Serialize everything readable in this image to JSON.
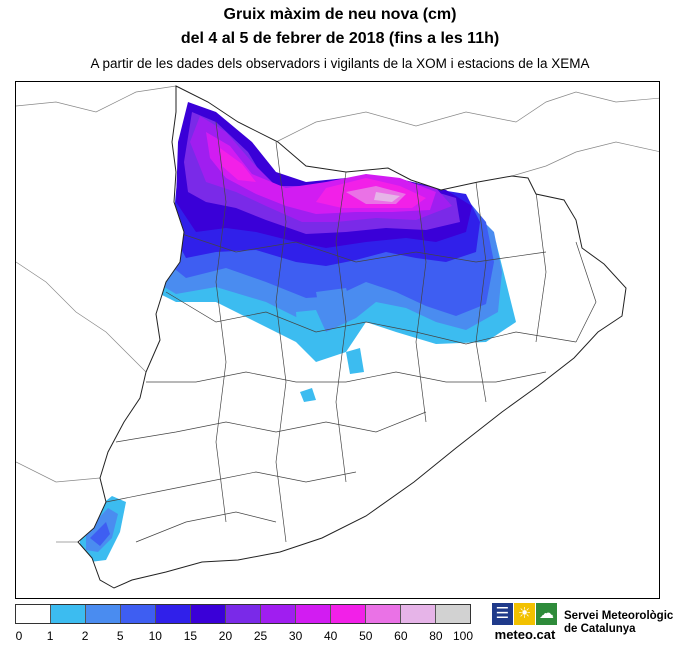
{
  "title_line1": "Gruix màxim de neu nova (cm)",
  "title_line2": "del 4 al 5 de febrer de 2018 (fins a les 11h)",
  "subtitle": "A partir de les dades dels observadors i vigilants de la XOM i estacions de la XEMA",
  "legend": {
    "colors": [
      "#ffffff",
      "#3cbcf0",
      "#4a8cf0",
      "#3e5ef2",
      "#3020ea",
      "#3a00d8",
      "#7a2ae8",
      "#a01ef0",
      "#d21cf2",
      "#f220e8",
      "#ea72e6",
      "#e6b4e8",
      "#d2d2d2"
    ],
    "labels": [
      "0",
      "1",
      "2",
      "5",
      "10",
      "15",
      "20",
      "25",
      "30",
      "40",
      "50",
      "60",
      "80",
      "100"
    ]
  },
  "logo": {
    "text": "meteo.cat",
    "icons": [
      "menu-lines-icon",
      "sun-icon",
      "cloud-icon"
    ]
  },
  "organization": [
    "Servei Meteorològic",
    "de Catalunya"
  ]
}
